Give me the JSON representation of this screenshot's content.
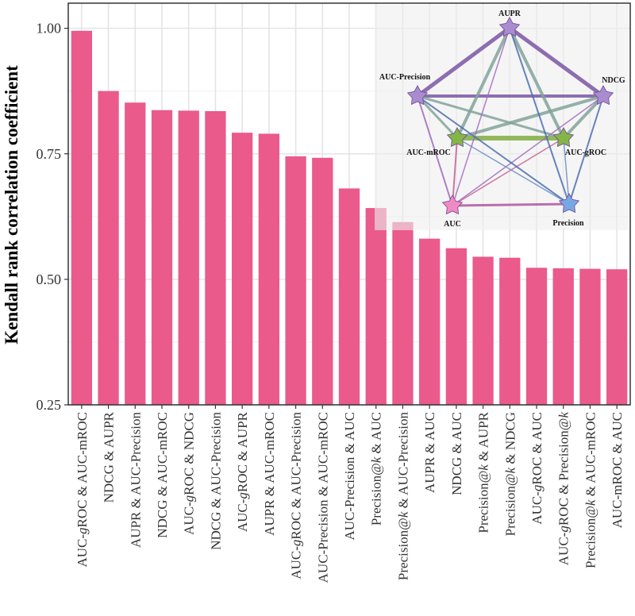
{
  "chart_data": {
    "type": "bar",
    "ylabel": "Kendall rank correlation coefficient",
    "ylim": [
      0.25,
      1.05
    ],
    "yticks": [
      0.25,
      0.5,
      0.75,
      1.0
    ],
    "ytick_labels": [
      "0.25",
      "0.50",
      "0.75",
      "1.00"
    ],
    "bar_color": "#ea5a8a",
    "categories": [
      [
        "AUC-",
        {
          "t": "g",
          "i": true
        },
        "ROC & AUC-mROC"
      ],
      [
        "NDCG & AUPR"
      ],
      [
        "AUPR & AUC-Precision"
      ],
      [
        "NDCG & AUC-mROC"
      ],
      [
        "AUC-",
        {
          "t": "g",
          "i": true
        },
        "ROC & NDCG"
      ],
      [
        "NDCG & AUC-Precision"
      ],
      [
        "AUC-",
        {
          "t": "g",
          "i": true
        },
        "ROC & AUPR"
      ],
      [
        "AUPR & AUC-mROC"
      ],
      [
        "AUC-",
        {
          "t": "g",
          "i": true
        },
        "ROC & AUC-Precision"
      ],
      [
        "AUC-Precision & AUC-mROC"
      ],
      [
        "AUC-Precision & AUC"
      ],
      [
        "Precision@",
        {
          "t": "k",
          "i": true
        },
        " & AUC"
      ],
      [
        "Precision@",
        {
          "t": "k",
          "i": true
        },
        " & AUC-Precision"
      ],
      [
        "AUPR & AUC"
      ],
      [
        "NDCG & AUC"
      ],
      [
        "Precision@",
        {
          "t": "k",
          "i": true
        },
        " & AUPR"
      ],
      [
        "Precision@",
        {
          "t": "k",
          "i": true
        },
        " & NDCG"
      ],
      [
        "AUC-",
        {
          "t": "g",
          "i": true
        },
        "ROC & AUC"
      ],
      [
        "AUC-",
        {
          "t": "g",
          "i": true
        },
        "ROC & Precision@",
        {
          "t": "k",
          "i": true
        }
      ],
      [
        "Precision@",
        {
          "t": "k",
          "i": true
        },
        " & AUC-mROC"
      ],
      [
        "AUC-mROC & AUC"
      ]
    ],
    "values": [
      0.995,
      0.875,
      0.852,
      0.837,
      0.836,
      0.835,
      0.792,
      0.79,
      0.745,
      0.742,
      0.681,
      0.642,
      0.614,
      0.581,
      0.562,
      0.545,
      0.543,
      0.523,
      0.522,
      0.521,
      0.52
    ],
    "inset_network": {
      "nodes": [
        {
          "id": "AUPR",
          "label": "AUPR",
          "color": "#a98bd0"
        },
        {
          "id": "NDCG",
          "label": "NDCG",
          "color": "#a98bd0"
        },
        {
          "id": "AUC-Precision",
          "label": "AUC-Precision",
          "color": "#a98bd0"
        },
        {
          "id": "AUC-mROC",
          "label": "AUC-mROC",
          "color": "#84b547"
        },
        {
          "id": "AUC-gROC",
          "label": "AUC-gROC",
          "color": "#84b547"
        },
        {
          "id": "AUC",
          "label": "AUC",
          "color": "#f08ac4"
        },
        {
          "id": "Precision",
          "label": "Precision",
          "color": "#78a7e6"
        }
      ],
      "edges": [
        {
          "a": "AUPR",
          "b": "NDCG",
          "w": 5,
          "color": "#7a56a3"
        },
        {
          "a": "AUPR",
          "b": "AUC-Precision",
          "w": 5,
          "color": "#7a56a3"
        },
        {
          "a": "NDCG",
          "b": "AUC-Precision",
          "w": 4,
          "color": "#7a56a3"
        },
        {
          "a": "AUC-mROC",
          "b": "AUC-gROC",
          "w": 6,
          "color": "#7fae3f"
        },
        {
          "a": "AUPR",
          "b": "AUC-mROC",
          "w": 4,
          "color": "#82a39a"
        },
        {
          "a": "AUPR",
          "b": "AUC-gROC",
          "w": 4,
          "color": "#82a39a"
        },
        {
          "a": "NDCG",
          "b": "AUC-mROC",
          "w": 4,
          "color": "#82a39a"
        },
        {
          "a": "NDCG",
          "b": "AUC-gROC",
          "w": 4,
          "color": "#82a39a"
        },
        {
          "a": "AUC-Precision",
          "b": "AUC-mROC",
          "w": 3,
          "color": "#82a39a"
        },
        {
          "a": "AUC-Precision",
          "b": "AUC-gROC",
          "w": 3,
          "color": "#82a39a"
        },
        {
          "a": "AUC",
          "b": "Precision",
          "w": 3,
          "color": "#b0569f"
        },
        {
          "a": "AUC",
          "b": "AUC-mROC",
          "w": 2,
          "color": "#c65f90"
        },
        {
          "a": "AUC",
          "b": "AUC-gROC",
          "w": 1.5,
          "color": "#c65f90"
        },
        {
          "a": "AUC",
          "b": "AUC-Precision",
          "w": 2,
          "color": "#a06abf"
        },
        {
          "a": "AUC",
          "b": "NDCG",
          "w": 1.5,
          "color": "#a06abf"
        },
        {
          "a": "AUC",
          "b": "AUPR",
          "w": 1.5,
          "color": "#a06abf"
        },
        {
          "a": "Precision",
          "b": "AUC-mROC",
          "w": 1.5,
          "color": "#6c8cc4"
        },
        {
          "a": "Precision",
          "b": "AUC-gROC",
          "w": 1.5,
          "color": "#6c8cc4"
        },
        {
          "a": "Precision",
          "b": "AUC-Precision",
          "w": 2,
          "color": "#4c6fb0"
        },
        {
          "a": "Precision",
          "b": "NDCG",
          "w": 2,
          "color": "#4c6fb0"
        },
        {
          "a": "Precision",
          "b": "AUPR",
          "w": 2,
          "color": "#4c6fb0"
        }
      ]
    }
  }
}
